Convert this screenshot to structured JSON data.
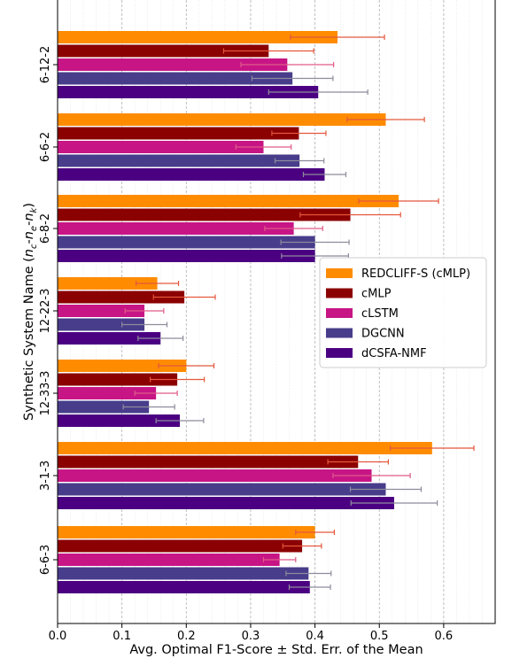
{
  "chart_data": {
    "type": "bar",
    "orientation": "horizontal",
    "title": "",
    "xlabel": "Avg. Optimal F1-Score ± Std. Err. of the Mean",
    "ylabel_parts": [
      "Synthetic System Name (",
      "n",
      "c",
      "-",
      "n",
      "e",
      "-",
      "n",
      "k",
      ")"
    ],
    "xlim": [
      0.0,
      0.68
    ],
    "xticks": [
      "0.0",
      "0.1",
      "0.2",
      "0.3",
      "0.4",
      "0.5",
      "0.6"
    ],
    "grid": true,
    "legend_position": "center-right",
    "categories": [
      "6-12-2",
      "6-6-2",
      "6-8-2",
      "12-22-3",
      "12-33-3",
      "3-1-3",
      "6-6-3"
    ],
    "series": [
      {
        "name": "REDCLIFF-S (cMLP)",
        "color": "#ff8c00",
        "values": [
          0.435,
          0.51,
          0.53,
          0.155,
          0.2,
          0.582,
          0.4
        ],
        "errors": [
          0.073,
          0.06,
          0.062,
          0.033,
          0.043,
          0.065,
          0.03
        ]
      },
      {
        "name": "cMLP",
        "color": "#8b0000",
        "values": [
          0.328,
          0.375,
          0.455,
          0.197,
          0.186,
          0.467,
          0.38
        ],
        "errors": [
          0.07,
          0.042,
          0.078,
          0.048,
          0.042,
          0.047,
          0.03
        ]
      },
      {
        "name": "cLSTM",
        "color": "#c71585",
        "values": [
          0.357,
          0.32,
          0.367,
          0.135,
          0.153,
          0.488,
          0.345
        ],
        "errors": [
          0.072,
          0.043,
          0.045,
          0.03,
          0.033,
          0.06,
          0.025
        ]
      },
      {
        "name": "DGCNN",
        "color": "#483d8b",
        "values": [
          0.365,
          0.376,
          0.4,
          0.135,
          0.142,
          0.51,
          0.39
        ],
        "errors": [
          0.063,
          0.038,
          0.053,
          0.035,
          0.04,
          0.055,
          0.035
        ]
      },
      {
        "name": "dCSFA-NMF",
        "color": "#4b0082",
        "values": [
          0.405,
          0.415,
          0.4,
          0.16,
          0.19,
          0.523,
          0.392
        ],
        "errors": [
          0.077,
          0.033,
          0.052,
          0.035,
          0.037,
          0.067,
          0.032
        ]
      }
    ]
  }
}
